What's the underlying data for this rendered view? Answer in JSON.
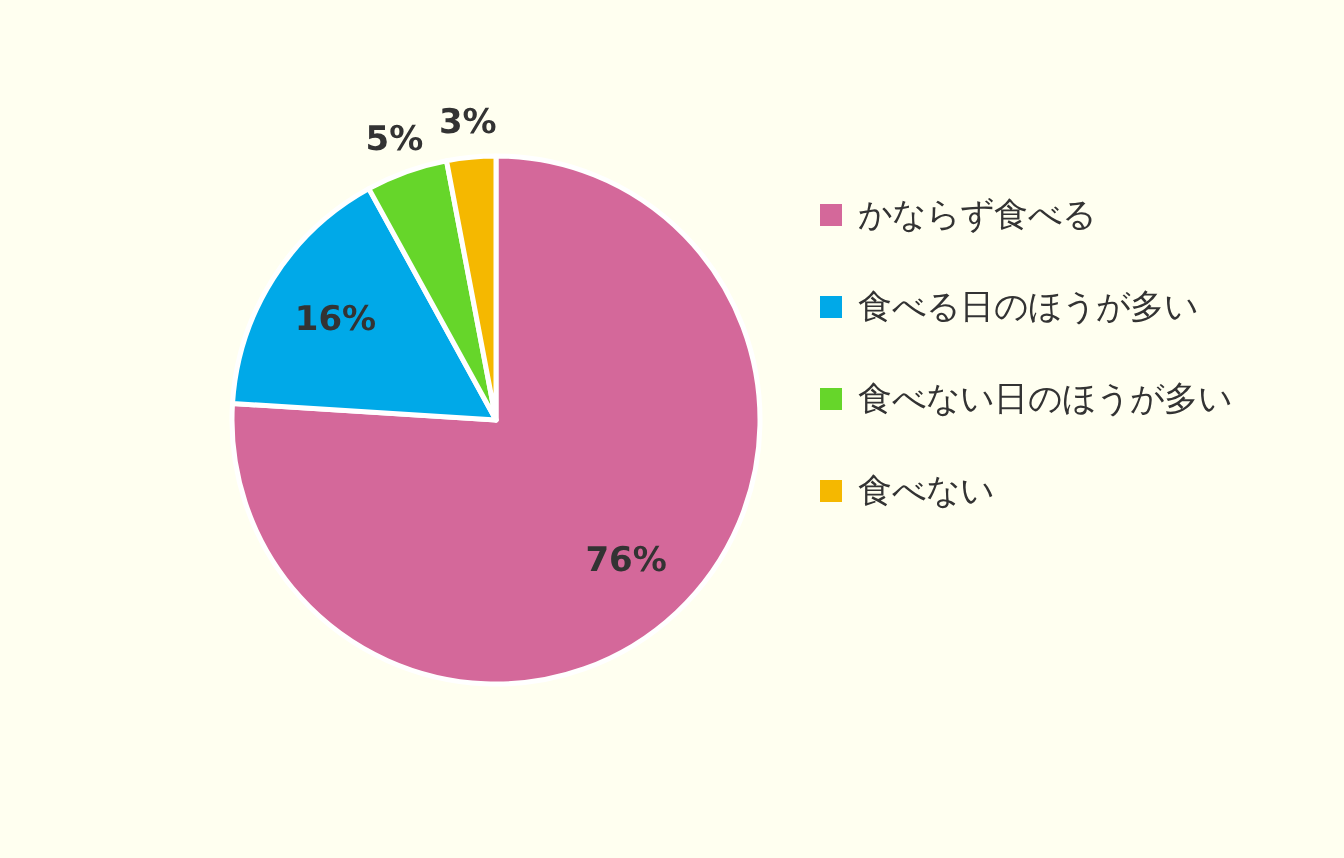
{
  "chart_data": {
    "type": "pie",
    "categories": [
      "かならず食べる",
      "食べる日のほうが多い",
      "食べない日のほうが多い",
      "食べない"
    ],
    "values": [
      76,
      16,
      5,
      3
    ],
    "colors": [
      "#d4689a",
      "#00a9e8",
      "#66d62a",
      "#f5b800"
    ],
    "value_labels": [
      "76%",
      "16%",
      "5%",
      "3%"
    ],
    "legend": "right"
  }
}
